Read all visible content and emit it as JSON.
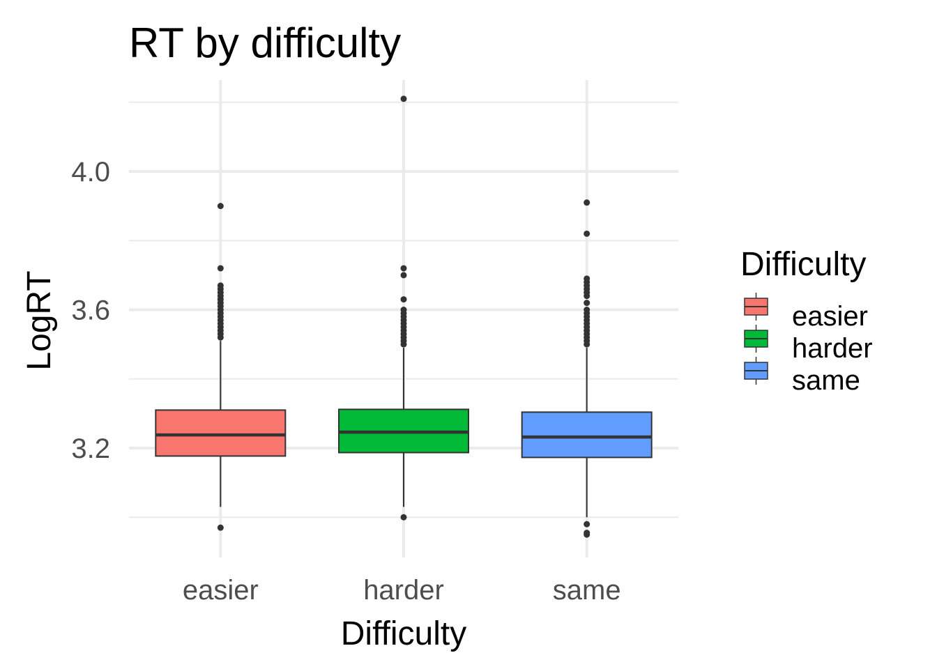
{
  "chart_data": {
    "type": "box",
    "title": "RT by difficulty",
    "xlabel": "Difficulty",
    "ylabel": "LogRT",
    "ylim": [
      2.91,
      4.27
    ],
    "y_ticks": [
      3.2,
      3.6,
      4.0
    ],
    "y_minor_ticks": [
      3.0,
      3.4,
      3.8,
      4.2
    ],
    "grid": true,
    "legend": {
      "title": "Difficulty",
      "placement": "right"
    },
    "categories": [
      "easier",
      "harder",
      "same"
    ],
    "colors": {
      "easier": "#F8766D",
      "harder": "#00BA38",
      "same": "#619CFF"
    },
    "boxes": [
      {
        "category": "easier",
        "whisker_low": 3.03,
        "q1": 3.177,
        "median": 3.238,
        "q3": 3.31,
        "whisker_high": 3.51,
        "outliers": [
          2.97,
          3.52,
          3.53,
          3.54,
          3.55,
          3.56,
          3.57,
          3.58,
          3.59,
          3.6,
          3.61,
          3.62,
          3.63,
          3.64,
          3.65,
          3.66,
          3.67,
          3.72,
          3.9
        ]
      },
      {
        "category": "harder",
        "whisker_low": 3.03,
        "q1": 3.187,
        "median": 3.246,
        "q3": 3.312,
        "whisker_high": 3.49,
        "outliers": [
          3.0,
          3.5,
          3.51,
          3.52,
          3.53,
          3.54,
          3.55,
          3.56,
          3.57,
          3.58,
          3.59,
          3.6,
          3.63,
          3.7,
          3.72,
          4.21
        ]
      },
      {
        "category": "same",
        "whisker_low": 3.0,
        "q1": 3.173,
        "median": 3.232,
        "q3": 3.304,
        "whisker_high": 3.49,
        "outliers": [
          2.95,
          2.955,
          2.98,
          3.5,
          3.51,
          3.52,
          3.53,
          3.54,
          3.55,
          3.56,
          3.57,
          3.58,
          3.59,
          3.6,
          3.62,
          3.64,
          3.65,
          3.66,
          3.67,
          3.68,
          3.69,
          3.82,
          3.91
        ]
      }
    ]
  }
}
